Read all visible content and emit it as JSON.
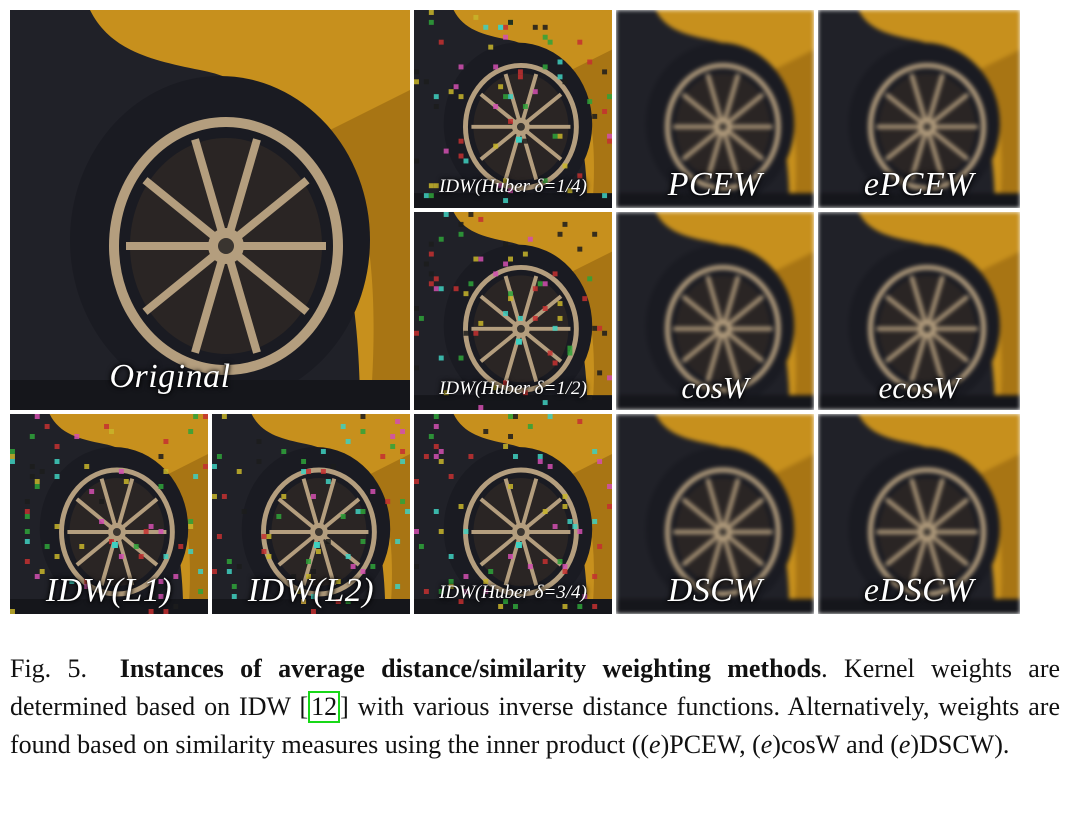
{
  "colors": {
    "car_body": "#c7901d",
    "car_shadow": "#8a5a0c",
    "tire": "#1a1b22",
    "rim": "#b49e7e",
    "background": "#202128",
    "link_box": "#18d818"
  },
  "figure": {
    "tiles": [
      {
        "id": "original",
        "label": "Original",
        "noisy": false,
        "blurred": false
      },
      {
        "id": "idw-huber-1-4",
        "label": "IDW(Huber δ=1/4)",
        "noisy": true,
        "blurred": false
      },
      {
        "id": "pcew",
        "label": "PCEW",
        "noisy": false,
        "blurred": true
      },
      {
        "id": "epcew",
        "label": "ePCEW",
        "noisy": false,
        "blurred": true
      },
      {
        "id": "idw-huber-1-2",
        "label": "IDW(Huber δ=1/2)",
        "noisy": true,
        "blurred": false
      },
      {
        "id": "cosw",
        "label": "cosW",
        "noisy": false,
        "blurred": true
      },
      {
        "id": "ecosw",
        "label": "ecosW",
        "noisy": false,
        "blurred": true
      },
      {
        "id": "idw-l1",
        "label": "IDW(L1)",
        "noisy": true,
        "blurred": false
      },
      {
        "id": "idw-l2",
        "label": "IDW(L2)",
        "noisy": true,
        "blurred": false
      },
      {
        "id": "idw-huber-3-4",
        "label": "IDW(Huber δ=3/4)",
        "noisy": true,
        "blurred": false
      },
      {
        "id": "dscw",
        "label": "DSCW",
        "noisy": false,
        "blurred": true
      },
      {
        "id": "edscw",
        "label": "eDSCW",
        "noisy": false,
        "blurred": true
      }
    ]
  },
  "caption": {
    "fig_label": "Fig. 5.",
    "title": "Instances of average distance/similarity weighting methods",
    "text_1": ". Kernel weights are determined based on IDW [",
    "ref": "12",
    "text_2": "] with various inverse distance functions. Alternatively, weights are found based on similarity measures using the inner product ((",
    "e1": "e",
    "text_3": ")PCEW, (",
    "e2": "e",
    "text_4": ")cosW and (",
    "e3": "e",
    "text_5": ")DSCW)."
  }
}
